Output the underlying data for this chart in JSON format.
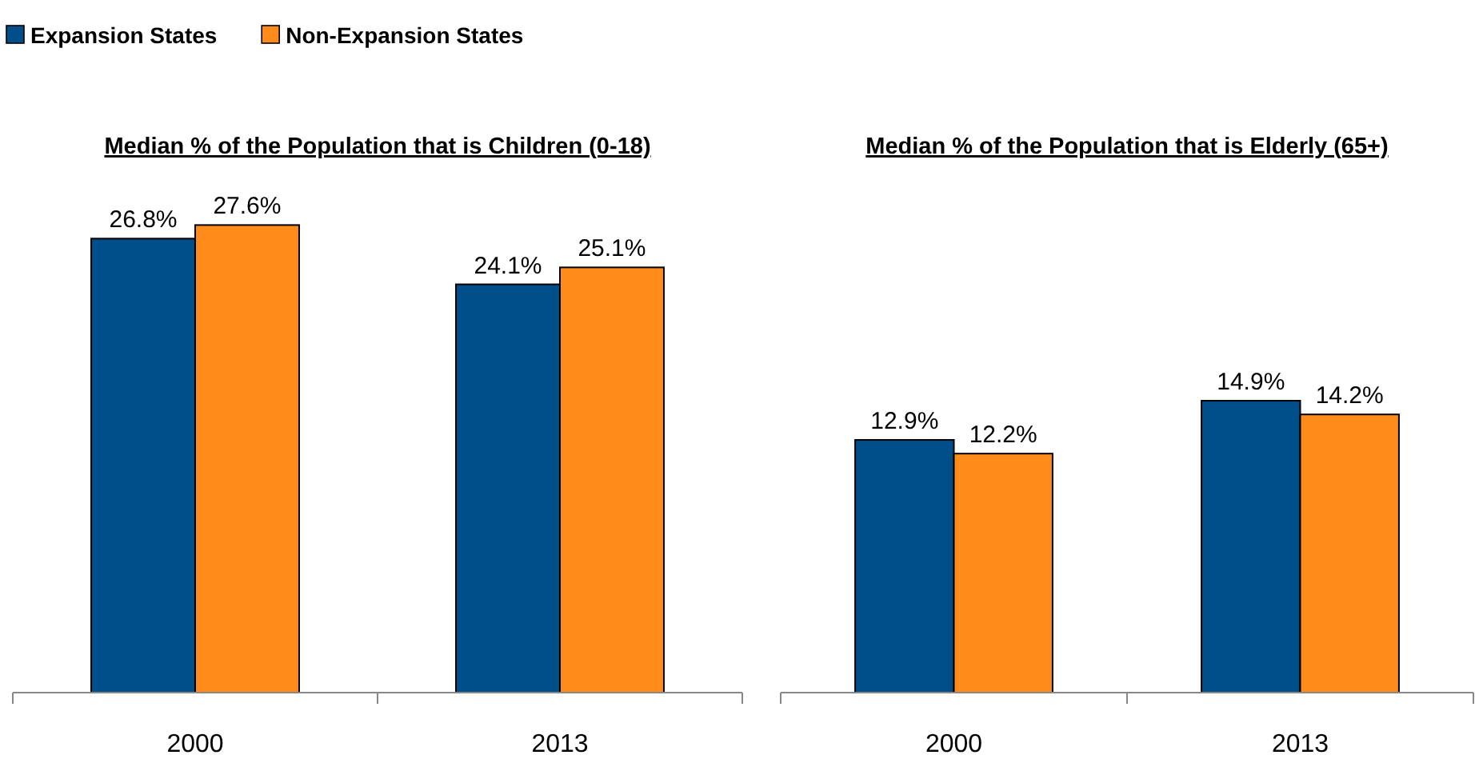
{
  "chart_data": [
    {
      "type": "bar",
      "title": "Median % of the Population that is Children (0-18)",
      "categories": [
        "2000",
        "2013"
      ],
      "series": [
        {
          "name": "Expansion States",
          "color": "#004e8a",
          "values": [
            26.8,
            24.1
          ],
          "value_labels": [
            "26.8%",
            "24.1%"
          ]
        },
        {
          "name": "Non-Expansion States",
          "color": "#ff8b1a",
          "values": [
            27.6,
            25.1
          ],
          "value_labels": [
            "27.6%",
            "25.1%"
          ]
        }
      ],
      "legend": "top left"
    },
    {
      "type": "bar",
      "title": "Median % of the Population that is Elderly (65+)",
      "categories": [
        "2000",
        "2013"
      ],
      "series": [
        {
          "color": "#004e8a",
          "values": [
            12.9,
            14.9
          ],
          "value_labels": [
            "12.9%",
            "14.9%"
          ]
        },
        {
          "color": "#ff8b1a",
          "values": [
            12.2,
            14.2
          ],
          "value_labels": [
            "12.2%",
            "14.2%"
          ]
        }
      ]
    }
  ]
}
